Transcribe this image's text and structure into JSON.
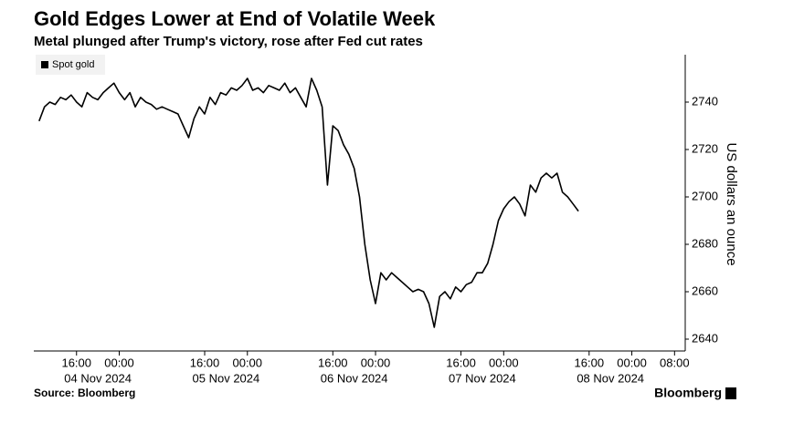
{
  "chart_data": {
    "type": "line",
    "title": "Gold Edges Lower at End of Volatile Week",
    "subtitle": "Metal plunged after Trump's victory, rose after Fed cut rates",
    "y_axis_label": "US dollars an ounce",
    "source": "Source: Bloomberg",
    "brand": "Bloomberg",
    "legend_position": "upper left",
    "x": [
      "2024-11-04T09:00",
      "2024-11-04T10:00",
      "2024-11-04T11:00",
      "2024-11-04T12:00",
      "2024-11-04T13:00",
      "2024-11-04T14:00",
      "2024-11-04T15:00",
      "2024-11-04T16:00",
      "2024-11-04T17:00",
      "2024-11-04T18:00",
      "2024-11-04T19:00",
      "2024-11-04T20:00",
      "2024-11-04T21:00",
      "2024-11-04T22:00",
      "2024-11-04T23:00",
      "2024-11-05T00:00",
      "2024-11-05T01:00",
      "2024-11-05T02:00",
      "2024-11-05T03:00",
      "2024-11-05T04:00",
      "2024-11-05T05:00",
      "2024-11-05T06:00",
      "2024-11-05T07:00",
      "2024-11-05T08:00",
      "2024-11-05T09:00",
      "2024-11-05T10:00",
      "2024-11-05T11:00",
      "2024-11-05T12:00",
      "2024-11-05T13:00",
      "2024-11-05T14:00",
      "2024-11-05T15:00",
      "2024-11-05T16:00",
      "2024-11-05T17:00",
      "2024-11-05T18:00",
      "2024-11-05T19:00",
      "2024-11-05T20:00",
      "2024-11-05T21:00",
      "2024-11-05T22:00",
      "2024-11-05T23:00",
      "2024-11-06T00:00",
      "2024-11-06T01:00",
      "2024-11-06T02:00",
      "2024-11-06T03:00",
      "2024-11-06T04:00",
      "2024-11-06T05:00",
      "2024-11-06T06:00",
      "2024-11-06T07:00",
      "2024-11-06T08:00",
      "2024-11-06T09:00",
      "2024-11-06T10:00",
      "2024-11-06T11:00",
      "2024-11-06T12:00",
      "2024-11-06T13:00",
      "2024-11-06T14:00",
      "2024-11-06T15:00",
      "2024-11-06T16:00",
      "2024-11-06T17:00",
      "2024-11-06T18:00",
      "2024-11-06T19:00",
      "2024-11-06T20:00",
      "2024-11-06T21:00",
      "2024-11-06T22:00",
      "2024-11-06T23:00",
      "2024-11-07T00:00",
      "2024-11-07T01:00",
      "2024-11-07T02:00",
      "2024-11-07T03:00",
      "2024-11-07T04:00",
      "2024-11-07T05:00",
      "2024-11-07T06:00",
      "2024-11-07T07:00",
      "2024-11-07T08:00",
      "2024-11-07T09:00",
      "2024-11-07T10:00",
      "2024-11-07T11:00",
      "2024-11-07T12:00",
      "2024-11-07T13:00",
      "2024-11-07T14:00",
      "2024-11-07T15:00",
      "2024-11-07T16:00",
      "2024-11-07T17:00",
      "2024-11-07T18:00",
      "2024-11-07T19:00",
      "2024-11-07T20:00",
      "2024-11-07T21:00",
      "2024-11-07T22:00",
      "2024-11-07T23:00",
      "2024-11-08T00:00",
      "2024-11-08T01:00",
      "2024-11-08T02:00",
      "2024-11-08T03:00",
      "2024-11-08T04:00",
      "2024-11-08T05:00",
      "2024-11-08T06:00",
      "2024-11-08T07:00",
      "2024-11-08T08:00",
      "2024-11-08T09:00",
      "2024-11-08T10:00",
      "2024-11-08T11:00",
      "2024-11-08T12:00",
      "2024-11-08T13:00",
      "2024-11-08T14:00"
    ],
    "series": [
      {
        "name": "Spot gold",
        "color": "#000000",
        "values": [
          2732,
          2738,
          2740,
          2739,
          2742,
          2741,
          2743,
          2740,
          2738,
          2744,
          2742,
          2741,
          2744,
          2746,
          2748,
          2744,
          2741,
          2744,
          2738,
          2742,
          2740,
          2739,
          2737,
          2738,
          2737,
          2736,
          2735,
          2730,
          2725,
          2733,
          2738,
          2735,
          2742,
          2739,
          2744,
          2743,
          2746,
          2745,
          2747,
          2750,
          2745,
          2746,
          2744,
          2747,
          2746,
          2745,
          2748,
          2744,
          2746,
          2742,
          2738,
          2750,
          2745,
          2738,
          2705,
          2730,
          2728,
          2722,
          2718,
          2712,
          2700,
          2680,
          2665,
          2655,
          2668,
          2665,
          2668,
          2666,
          2664,
          2662,
          2660,
          2661,
          2660,
          2655,
          2645,
          2658,
          2660,
          2657,
          2662,
          2660,
          2663,
          2664,
          2668,
          2668,
          2672,
          2680,
          2690,
          2695,
          2698,
          2700,
          2697,
          2692,
          2705,
          2702,
          2708,
          2710,
          2708,
          2710,
          2702,
          2700,
          2697,
          2694
        ]
      }
    ],
    "xlim": [
      "2024-11-04T08:00",
      "2024-11-09T10:00"
    ],
    "xticks": [
      {
        "value": "2024-11-04T16:00",
        "label": "16:00"
      },
      {
        "value": "2024-11-05T00:00",
        "label": "00:00"
      },
      {
        "value": "2024-11-05T16:00",
        "label": "16:00"
      },
      {
        "value": "2024-11-06T00:00",
        "label": "00:00"
      },
      {
        "value": "2024-11-06T16:00",
        "label": "16:00"
      },
      {
        "value": "2024-11-07T00:00",
        "label": "00:00"
      },
      {
        "value": "2024-11-07T16:00",
        "label": "16:00"
      },
      {
        "value": "2024-11-08T00:00",
        "label": "00:00"
      },
      {
        "value": "2024-11-08T16:00",
        "label": "16:00"
      },
      {
        "value": "2024-11-09T00:00",
        "label": "00:00"
      },
      {
        "value": "2024-11-09T08:00",
        "label": "08:00"
      }
    ],
    "date_labels": [
      "04 Nov 2024",
      "05 Nov 2024",
      "06 Nov 2024",
      "07 Nov 2024",
      "08 Nov 2024"
    ],
    "ylim": [
      2635,
      2760
    ],
    "yticks": [
      2640,
      2660,
      2680,
      2700,
      2720,
      2740
    ],
    "y_axis_side": "right"
  }
}
